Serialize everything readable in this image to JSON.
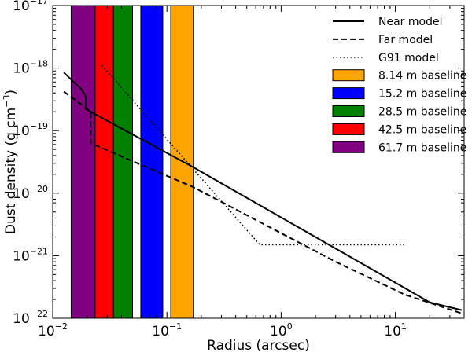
{
  "chart_data": {
    "type": "line",
    "xlabel": "Radius (arcsec)",
    "ylabel": "Dust density (g cm",
    "ylabel_exp": "−3",
    "ylabel_close": ")",
    "xscale": "log",
    "yscale": "log",
    "xlim": [
      0.01,
      40
    ],
    "ylim": [
      1e-22,
      1e-17
    ],
    "x_ticks": [
      {
        "value": 0.01,
        "base": "10",
        "exp": "−2"
      },
      {
        "value": 0.1,
        "base": "10",
        "exp": "−1"
      },
      {
        "value": 1,
        "base": "10",
        "exp": "0"
      },
      {
        "value": 10,
        "base": "10",
        "exp": "1"
      }
    ],
    "y_ticks": [
      {
        "value": 1e-22,
        "base": "10",
        "exp": "−22"
      },
      {
        "value": 1e-21,
        "base": "10",
        "exp": "−21"
      },
      {
        "value": 1e-20,
        "base": "10",
        "exp": "−20"
      },
      {
        "value": 1e-19,
        "base": "10",
        "exp": "−19"
      },
      {
        "value": 1e-18,
        "base": "10",
        "exp": "−18"
      },
      {
        "value": 1e-17,
        "base": "10",
        "exp": "−17"
      }
    ],
    "bands": [
      {
        "name": "61.7 m baseline",
        "color": "#800080",
        "x0": 0.0145,
        "x1": 0.0235
      },
      {
        "name": "42.5 m baseline",
        "color": "#ff0000",
        "x0": 0.0235,
        "x1": 0.034
      },
      {
        "name": "28.5 m baseline",
        "color": "#008000",
        "x0": 0.034,
        "x1": 0.05
      },
      {
        "name": "15.2 m baseline",
        "color": "#0000ff",
        "x0": 0.059,
        "x1": 0.092
      },
      {
        "name": "8.14 m baseline",
        "color": "#ffa500",
        "x0": 0.108,
        "x1": 0.17
      }
    ],
    "series": [
      {
        "name": "Near model",
        "style": "solid",
        "x": [
          0.0125,
          0.018,
          0.0195,
          0.0195,
          0.17,
          20,
          38
        ],
        "y": [
          8.5e-19,
          4.5e-19,
          3.5e-19,
          2.2e-19,
          2.6e-20,
          1.8e-22,
          1.35e-22
        ]
      },
      {
        "name": "Far model",
        "style": "dashed",
        "x": [
          0.0125,
          0.019,
          0.0215,
          0.0215,
          0.17,
          3,
          12,
          38
        ],
        "y": [
          4.2e-19,
          2.4e-19,
          2e-19,
          6.3e-20,
          1.25e-20,
          8e-22,
          2.4e-22,
          1.2e-22
        ]
      },
      {
        "name": "G91 model",
        "style": "dotted",
        "x": [
          0.027,
          0.65,
          12
        ],
        "y": [
          1.1e-18,
          1.5e-21,
          1.5e-21
        ]
      }
    ],
    "legend": {
      "placement": "top-right",
      "entries": [
        {
          "label": "Near model",
          "kind": "line",
          "style": "solid"
        },
        {
          "label": "Far model",
          "kind": "line",
          "style": "dashed"
        },
        {
          "label": "G91 model",
          "kind": "line",
          "style": "dotted"
        },
        {
          "label": "8.14 m baseline",
          "kind": "patch",
          "color": "#ffa500"
        },
        {
          "label": "15.2 m baseline",
          "kind": "patch",
          "color": "#0000ff"
        },
        {
          "label": "28.5 m baseline",
          "kind": "patch",
          "color": "#008000"
        },
        {
          "label": "42.5 m baseline",
          "kind": "patch",
          "color": "#ff0000"
        },
        {
          "label": "61.7 m baseline",
          "kind": "patch",
          "color": "#800080"
        }
      ]
    },
    "grid": false
  }
}
